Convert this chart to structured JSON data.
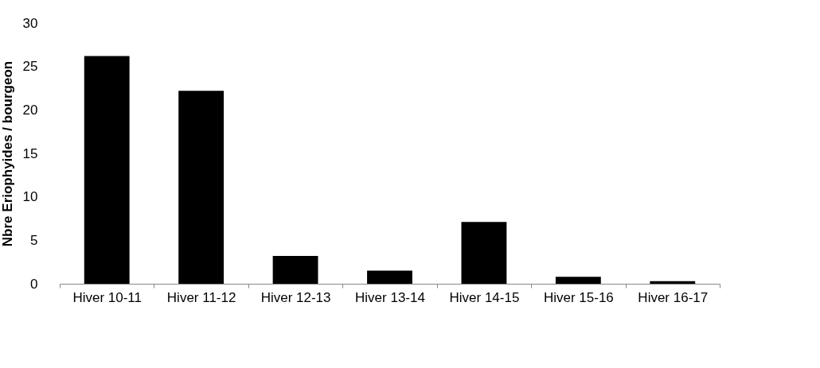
{
  "chart_data": {
    "type": "bar",
    "ylabel": "Nbre Eriophyides / bourgeon",
    "categories": [
      "Hiver 10-11",
      "Hiver 11-12",
      "Hiver 12-13",
      "Hiver 13-14",
      "Hiver 14-15",
      "Hiver 15-16",
      "Hiver 16-17"
    ],
    "values": [
      26.2,
      22.2,
      3.2,
      1.5,
      7.1,
      0.8,
      0.3
    ],
    "color": "#000000",
    "ylim": [
      0,
      30
    ],
    "yticks": [
      0,
      5,
      10,
      15,
      20,
      25,
      30
    ],
    "grid": false
  }
}
